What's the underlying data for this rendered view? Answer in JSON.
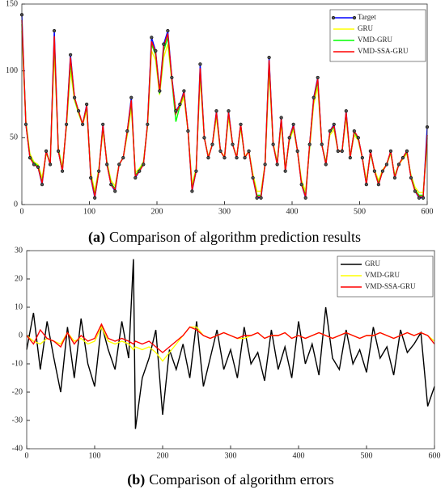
{
  "chart_data": [
    {
      "type": "line",
      "caption_tag": "(a)",
      "caption": "Comparison of algorithm prediction results",
      "x": [
        0,
        6,
        12,
        18,
        24,
        30,
        36,
        42,
        48,
        54,
        60,
        66,
        72,
        78,
        84,
        90,
        96,
        102,
        108,
        114,
        120,
        126,
        132,
        138,
        144,
        150,
        156,
        162,
        168,
        174,
        180,
        186,
        192,
        198,
        204,
        210,
        216,
        222,
        228,
        234,
        240,
        246,
        252,
        258,
        264,
        270,
        276,
        282,
        288,
        294,
        300,
        306,
        312,
        318,
        324,
        330,
        336,
        342,
        348,
        354,
        360,
        366,
        372,
        378,
        384,
        390,
        396,
        402,
        408,
        414,
        420,
        426,
        432,
        438,
        444,
        450,
        456,
        462,
        468,
        474,
        480,
        486,
        492,
        498,
        504,
        510,
        516,
        522,
        528,
        534,
        540,
        546,
        552,
        558,
        564,
        570,
        576,
        582,
        588,
        594,
        600
      ],
      "series": [
        {
          "name": "Target",
          "color": "#0000ff",
          "marker": true,
          "values": [
            142,
            60,
            35,
            30,
            28,
            15,
            40,
            30,
            130,
            40,
            25,
            60,
            112,
            80,
            70,
            60,
            75,
            20,
            5,
            25,
            60,
            30,
            15,
            10,
            30,
            35,
            55,
            80,
            20,
            25,
            30,
            60,
            125,
            115,
            85,
            120,
            130,
            95,
            70,
            75,
            85,
            55,
            10,
            25,
            105,
            50,
            35,
            45,
            70,
            40,
            35,
            70,
            45,
            35,
            60,
            35,
            40,
            20,
            5,
            5,
            30,
            110,
            45,
            30,
            65,
            25,
            50,
            60,
            40,
            15,
            5,
            45,
            80,
            95,
            45,
            30,
            55,
            60,
            40,
            40,
            70,
            35,
            55,
            50,
            35,
            15,
            40,
            25,
            15,
            25,
            30,
            40,
            20,
            30,
            35,
            40,
            20,
            10,
            5,
            5,
            58
          ]
        },
        {
          "name": "GRU",
          "color": "#ffff00",
          "values": [
            130,
            62,
            38,
            32,
            30,
            20,
            38,
            32,
            115,
            42,
            28,
            58,
            100,
            78,
            68,
            60,
            70,
            24,
            10,
            27,
            55,
            32,
            18,
            14,
            30,
            35,
            52,
            72,
            24,
            27,
            32,
            58,
            115,
            108,
            82,
            110,
            120,
            92,
            70,
            73,
            80,
            55,
            15,
            27,
            95,
            50,
            36,
            45,
            65,
            40,
            36,
            65,
            45,
            36,
            57,
            36,
            40,
            23,
            10,
            10,
            30,
            100,
            46,
            32,
            60,
            27,
            48,
            56,
            40,
            18,
            10,
            42,
            75,
            88,
            45,
            32,
            52,
            56,
            40,
            40,
            65,
            36,
            52,
            48,
            35,
            18,
            38,
            26,
            18,
            26,
            30,
            38,
            22,
            30,
            34,
            38,
            22,
            13,
            9,
            9,
            45
          ]
        },
        {
          "name": "VMD-GRU",
          "color": "#00ff00",
          "values": [
            135,
            61,
            36,
            31,
            29,
            17,
            39,
            31,
            122,
            41,
            26,
            59,
            106,
            79,
            69,
            60,
            73,
            22,
            7,
            26,
            58,
            31,
            16,
            12,
            30,
            35,
            54,
            76,
            22,
            26,
            31,
            59,
            120,
            112,
            83,
            115,
            125,
            93,
            62,
            74,
            83,
            55,
            12,
            26,
            100,
            50,
            35,
            45,
            68,
            40,
            35,
            68,
            45,
            35,
            59,
            35,
            40,
            21,
            7,
            7,
            30,
            105,
            45,
            31,
            63,
            26,
            49,
            58,
            40,
            16,
            7,
            44,
            78,
            92,
            45,
            31,
            54,
            58,
            40,
            40,
            68,
            35,
            54,
            49,
            35,
            16,
            39,
            25,
            16,
            25,
            30,
            39,
            21,
            30,
            35,
            39,
            21,
            11,
            7,
            7,
            50
          ]
        },
        {
          "name": "VMD-SSA-GRU",
          "color": "#ff0000",
          "values": [
            138,
            60,
            35,
            30,
            28,
            16,
            40,
            30,
            126,
            40,
            25,
            60,
            110,
            80,
            70,
            60,
            74,
            21,
            6,
            25,
            59,
            30,
            15,
            11,
            30,
            35,
            55,
            78,
            21,
            25,
            30,
            60,
            122,
            114,
            84,
            118,
            128,
            94,
            68,
            75,
            84,
            55,
            11,
            25,
            102,
            50,
            35,
            45,
            69,
            40,
            35,
            69,
            45,
            35,
            60,
            35,
            40,
            20,
            6,
            6,
            30,
            108,
            45,
            30,
            64,
            25,
            50,
            59,
            40,
            15,
            6,
            45,
            79,
            94,
            45,
            30,
            55,
            59,
            40,
            40,
            69,
            35,
            55,
            50,
            35,
            15,
            40,
            25,
            15,
            25,
            30,
            40,
            20,
            30,
            35,
            40,
            20,
            10,
            6,
            6,
            52
          ]
        }
      ],
      "xlim": [
        0,
        600
      ],
      "xticks": [
        0,
        100,
        200,
        300,
        400,
        500,
        600
      ],
      "ylim": [
        0,
        150
      ],
      "yticks": [
        0,
        50,
        100,
        150
      ],
      "legend": "upper right"
    },
    {
      "type": "line",
      "caption_tag": "(b)",
      "caption": "Comparison of algorithm errors",
      "x": [
        0,
        10,
        20,
        30,
        40,
        50,
        60,
        70,
        80,
        90,
        100,
        110,
        120,
        130,
        140,
        150,
        157,
        160,
        170,
        180,
        190,
        200,
        210,
        220,
        230,
        240,
        250,
        260,
        270,
        280,
        290,
        300,
        310,
        320,
        330,
        340,
        350,
        360,
        370,
        380,
        390,
        400,
        410,
        420,
        430,
        440,
        450,
        460,
        470,
        480,
        490,
        500,
        510,
        520,
        530,
        540,
        550,
        560,
        570,
        580,
        590,
        600
      ],
      "series": [
        {
          "name": "GRU",
          "color": "#000000",
          "values": [
            -5,
            8,
            -12,
            5,
            -8,
            -20,
            3,
            -15,
            6,
            -10,
            -18,
            4,
            -5,
            -12,
            5,
            -8,
            27,
            -33,
            -15,
            -8,
            2,
            -28,
            -5,
            -12,
            -3,
            -15,
            5,
            -18,
            -8,
            2,
            -12,
            -5,
            -15,
            3,
            -10,
            -6,
            -16,
            2,
            -12,
            -4,
            -15,
            5,
            -10,
            -3,
            -14,
            10,
            -8,
            -12,
            2,
            -10,
            -5,
            -13,
            3,
            -8,
            -4,
            -14,
            2,
            -6,
            -3,
            1,
            -25,
            -18
          ]
        },
        {
          "name": "VMD-GRU",
          "color": "#ffff00",
          "values": [
            0,
            -2,
            -3,
            -1,
            -2,
            -3,
            1,
            -2,
            -1,
            -3,
            -2,
            3,
            -2,
            -3,
            -2,
            -3,
            -5,
            -4,
            -5,
            -4,
            -6,
            -9,
            -6,
            -3,
            0,
            3,
            3,
            0,
            -1,
            0,
            1,
            0,
            -1,
            -1,
            0,
            1,
            -1,
            0,
            0,
            1,
            -1,
            0,
            -1,
            0,
            1,
            0,
            -1,
            0,
            1,
            0,
            -1,
            0,
            0,
            1,
            0,
            -1,
            0,
            1,
            0,
            1,
            0,
            -2
          ]
        },
        {
          "name": "VMD-SSA-GRU",
          "color": "#ff0000",
          "values": [
            0,
            -3,
            2,
            -1,
            -2,
            -4,
            1,
            -3,
            0,
            -2,
            -1,
            4,
            -1,
            -2,
            -1,
            -2,
            -3,
            -2,
            -3,
            -2,
            -4,
            -6,
            -4,
            -2,
            0,
            3,
            2,
            0,
            -1,
            0,
            1,
            0,
            -1,
            0,
            0,
            1,
            -1,
            0,
            0,
            1,
            -1,
            0,
            -1,
            0,
            1,
            0,
            -1,
            0,
            1,
            0,
            -1,
            0,
            0,
            1,
            0,
            -1,
            0,
            1,
            0,
            1,
            0,
            -3
          ]
        }
      ],
      "xlim": [
        0,
        600
      ],
      "xticks": [
        0,
        100,
        200,
        300,
        400,
        500,
        600
      ],
      "ylim": [
        -40,
        30
      ],
      "yticks": [
        -40,
        -30,
        -20,
        -10,
        0,
        10,
        20,
        30
      ],
      "legend": "upper right"
    }
  ]
}
